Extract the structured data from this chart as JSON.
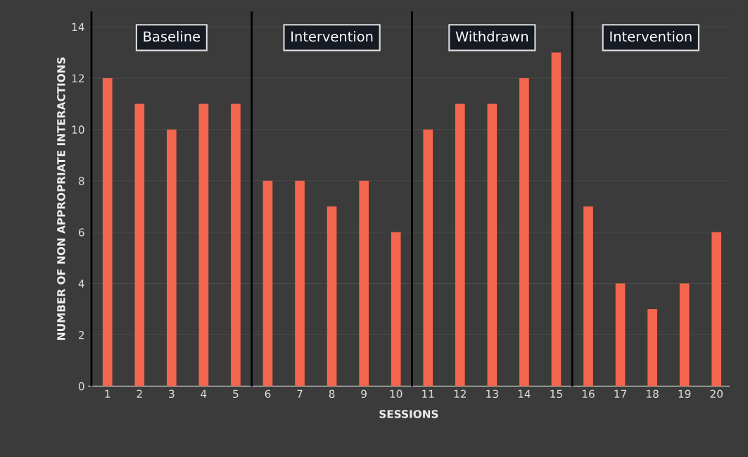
{
  "chart_data": {
    "type": "bar",
    "xlabel": "SESSIONS",
    "ylabel": "NUMBER OF NON APPROPRIATE INTERACTIONS",
    "x": [
      1,
      2,
      3,
      4,
      5,
      6,
      7,
      8,
      9,
      10,
      11,
      12,
      13,
      14,
      15,
      16,
      17,
      18,
      19,
      20
    ],
    "values": [
      12,
      11,
      10,
      11,
      11,
      8,
      8,
      7,
      8,
      6,
      10,
      11,
      11,
      12,
      13,
      7,
      4,
      3,
      4,
      6
    ],
    "color": "#f4664d",
    "xlim": [
      0.4,
      20.4
    ],
    "xticks": [
      1,
      2,
      3,
      4,
      5,
      6,
      7,
      8,
      9,
      10,
      11,
      12,
      13,
      14,
      15,
      16,
      17,
      18,
      19,
      20
    ],
    "ylim": [
      0,
      14.6
    ],
    "yticks": [
      0,
      2,
      4,
      6,
      8,
      10,
      12,
      14
    ],
    "grid": "y",
    "ref_lines": [
      {
        "axis": "x",
        "value": 0.5,
        "color": "#000000"
      },
      {
        "axis": "x",
        "value": 5.5,
        "color": "#000000"
      },
      {
        "axis": "x",
        "value": 10.5,
        "color": "#000000"
      },
      {
        "axis": "x",
        "value": 15.5,
        "color": "#000000"
      }
    ],
    "annotations": [
      "Baseline",
      "Intervention",
      "Withdrawn",
      "Intervention"
    ]
  }
}
